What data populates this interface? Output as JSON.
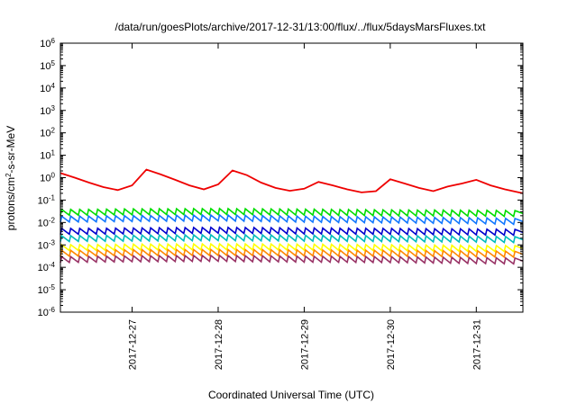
{
  "chart_data": {
    "type": "line",
    "title": "/data/run/goesPlots/archive/2017-12-31/13:00/flux/../flux/5daysMarsFluxes.txt",
    "xlabel": "Coordinated Universal Time (UTC)",
    "ylabel": {
      "prefix": "protons/cm",
      "sup": "2",
      "suffix": "-s-sr-MeV"
    },
    "yscale": "log",
    "ylim": [
      1e-06,
      1000000.0
    ],
    "y_ticks": [
      {
        "base": "10",
        "exp": "-6"
      },
      {
        "base": "10",
        "exp": "-5"
      },
      {
        "base": "10",
        "exp": "-4"
      },
      {
        "base": "10",
        "exp": "-3"
      },
      {
        "base": "10",
        "exp": "-2"
      },
      {
        "base": "10",
        "exp": "-1"
      },
      {
        "base": "10",
        "exp": "0"
      },
      {
        "base": "10",
        "exp": "1"
      },
      {
        "base": "10",
        "exp": "2"
      },
      {
        "base": "10",
        "exp": "3"
      },
      {
        "base": "10",
        "exp": "4"
      },
      {
        "base": "10",
        "exp": "5"
      },
      {
        "base": "10",
        "exp": "6"
      }
    ],
    "xlim": [
      "2017-12-26 04:00",
      "2017-12-31 13:00"
    ],
    "x_ticks": [
      "2017-12-27",
      "2017-12-28",
      "2017-12-29",
      "2017-12-30",
      "2017-12-31"
    ],
    "grid": false,
    "legend": "none",
    "series": [
      {
        "color": "#ee0000",
        "x": [
          "2017-12-26 04:00",
          "2017-12-26 08:00",
          "2017-12-26 12:00",
          "2017-12-26 16:00",
          "2017-12-26 20:00",
          "2017-12-27 00:00",
          "2017-12-27 04:00",
          "2017-12-27 08:00",
          "2017-12-27 12:00",
          "2017-12-27 16:00",
          "2017-12-27 20:00",
          "2017-12-28 00:00",
          "2017-12-28 04:00",
          "2017-12-28 08:00",
          "2017-12-28 12:00",
          "2017-12-28 16:00",
          "2017-12-28 20:00",
          "2017-12-29 00:00",
          "2017-12-29 04:00",
          "2017-12-29 08:00",
          "2017-12-29 12:00",
          "2017-12-29 16:00",
          "2017-12-29 20:00",
          "2017-12-30 00:00",
          "2017-12-30 04:00",
          "2017-12-30 08:00",
          "2017-12-30 12:00",
          "2017-12-30 16:00",
          "2017-12-30 20:00",
          "2017-12-31 00:00",
          "2017-12-31 04:00",
          "2017-12-31 08:00",
          "2017-12-31 13:00"
        ],
        "y": [
          1.6,
          1.0,
          0.6,
          0.38,
          0.28,
          0.45,
          2.3,
          1.4,
          0.8,
          0.45,
          0.3,
          0.5,
          2.1,
          1.3,
          0.6,
          0.35,
          0.26,
          0.32,
          0.65,
          0.45,
          0.3,
          0.22,
          0.25,
          0.85,
          0.55,
          0.35,
          0.25,
          0.4,
          0.55,
          0.8,
          0.45,
          0.3,
          0.2
        ]
      },
      {
        "color": "#00dd00",
        "x": [
          "2017-12-26 04:00",
          "2017-12-27 00:00",
          "2017-12-28 00:00",
          "2017-12-29 00:00",
          "2017-12-30 00:00",
          "2017-12-31 00:00",
          "2017-12-31 13:00"
        ],
        "y": [
          0.028,
          0.03,
          0.031,
          0.029,
          0.027,
          0.026,
          0.025
        ]
      },
      {
        "color": "#1177ff",
        "x": [
          "2017-12-26 04:00",
          "2017-12-27 00:00",
          "2017-12-28 00:00",
          "2017-12-29 00:00",
          "2017-12-30 00:00",
          "2017-12-31 00:00",
          "2017-12-31 13:00"
        ],
        "y": [
          0.014,
          0.015,
          0.016,
          0.014,
          0.013,
          0.012,
          0.011
        ]
      },
      {
        "color": "#0000cc",
        "x": [
          "2017-12-26 04:00",
          "2017-12-27 00:00",
          "2017-12-28 00:00",
          "2017-12-29 00:00",
          "2017-12-30 00:00",
          "2017-12-31 00:00",
          "2017-12-31 13:00"
        ],
        "y": [
          0.004,
          0.0042,
          0.0045,
          0.0042,
          0.004,
          0.0038,
          0.0036
        ]
      },
      {
        "color": "#00bbbb",
        "x": [
          "2017-12-26 04:00",
          "2017-12-27 00:00",
          "2017-12-28 00:00",
          "2017-12-29 00:00",
          "2017-12-30 00:00",
          "2017-12-31 00:00",
          "2017-12-31 13:00"
        ],
        "y": [
          0.0019,
          0.002,
          0.0021,
          0.002,
          0.0019,
          0.0018,
          0.0017
        ]
      },
      {
        "color": "#ffff00",
        "x": [
          "2017-12-26 04:00",
          "2017-12-27 00:00",
          "2017-12-28 00:00",
          "2017-12-29 00:00",
          "2017-12-30 00:00",
          "2017-12-31 00:00",
          "2017-12-31 13:00"
        ],
        "y": [
          0.00075,
          0.0008,
          0.00082,
          0.0008,
          0.00075,
          0.0007,
          0.00068
        ]
      },
      {
        "color": "#ff8800",
        "x": [
          "2017-12-26 04:00",
          "2017-12-27 00:00",
          "2017-12-28 00:00",
          "2017-12-29 00:00",
          "2017-12-30 00:00",
          "2017-12-31 00:00",
          "2017-12-31 13:00"
        ],
        "y": [
          0.00042,
          0.00045,
          0.00046,
          0.00044,
          0.00042,
          0.0004,
          0.00038
        ]
      },
      {
        "color": "#993366",
        "x": [
          "2017-12-26 04:00",
          "2017-12-27 00:00",
          "2017-12-28 00:00",
          "2017-12-29 00:00",
          "2017-12-30 00:00",
          "2017-12-31 00:00",
          "2017-12-31 13:00"
        ],
        "y": [
          0.00022,
          0.00024,
          0.00025,
          0.00023,
          0.00022,
          0.0002,
          0.00019
        ]
      }
    ]
  }
}
